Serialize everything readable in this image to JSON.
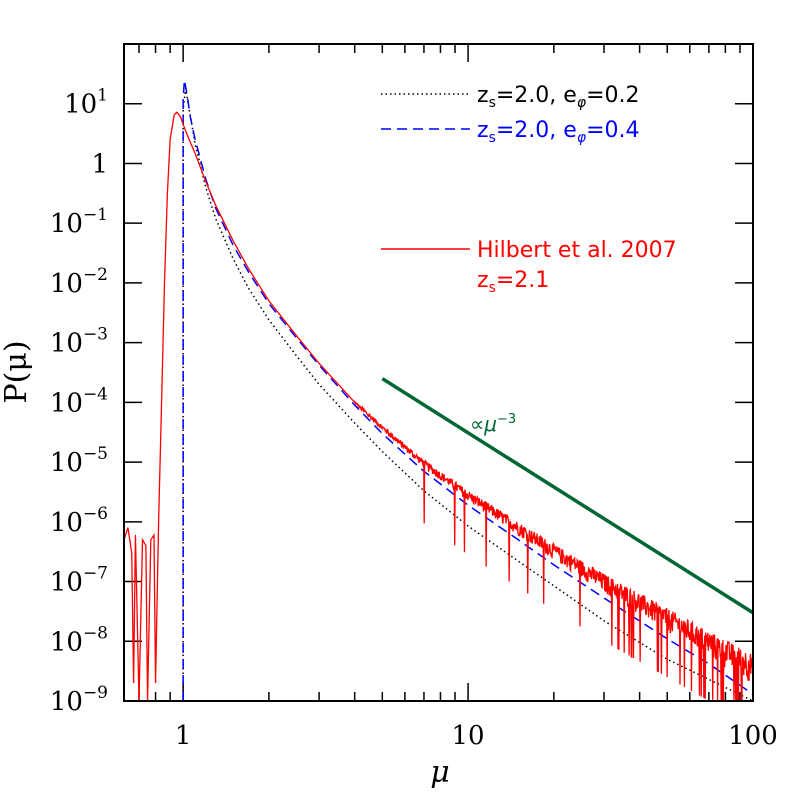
{
  "chart_data": {
    "type": "line",
    "xscale": "log",
    "yscale": "log",
    "xlim": [
      0.62,
      100
    ],
    "ylim": [
      1e-09,
      100
    ],
    "xlabel": "μ",
    "ylabel": "P(μ)",
    "x_ticks": [
      {
        "value": 1,
        "label": "1"
      },
      {
        "value": 10,
        "label": "10"
      },
      {
        "value": 100,
        "label": "100"
      }
    ],
    "y_ticks": [
      {
        "value": 10,
        "base": "10",
        "exp": "1"
      },
      {
        "value": 1,
        "base": "1",
        "exp": ""
      },
      {
        "value": 0.1,
        "base": "10",
        "exp": "−1"
      },
      {
        "value": 0.01,
        "base": "10",
        "exp": "−2"
      },
      {
        "value": 0.001,
        "base": "10",
        "exp": "−3"
      },
      {
        "value": 0.0001,
        "base": "10",
        "exp": "−4"
      },
      {
        "value": 1e-05,
        "base": "10",
        "exp": "−5"
      },
      {
        "value": 1e-06,
        "base": "10",
        "exp": "−6"
      },
      {
        "value": 1e-07,
        "base": "10",
        "exp": "−7"
      },
      {
        "value": 1e-08,
        "base": "10",
        "exp": "−8"
      },
      {
        "value": 1e-09,
        "base": "10",
        "exp": "−9"
      }
    ],
    "series": [
      {
        "name": "z_s=2.0, e_φ=0.2",
        "color": "#000000",
        "style": "dotted",
        "points": [
          [
            1.0,
            1e-09
          ],
          [
            1.0,
            8
          ],
          [
            1.02,
            18
          ],
          [
            1.05,
            8
          ],
          [
            1.1,
            2.2
          ],
          [
            1.2,
            0.4
          ],
          [
            1.3,
            0.12
          ],
          [
            1.5,
            0.025
          ],
          [
            1.7,
            0.008
          ],
          [
            2,
            0.0024
          ],
          [
            2.5,
            0.0006
          ],
          [
            3,
            0.0002
          ],
          [
            4,
            4.5e-05
          ],
          [
            5,
            1.5e-05
          ],
          [
            7,
            3.3e-06
          ],
          [
            10,
            8.5e-07
          ],
          [
            15,
            2.2e-07
          ],
          [
            20,
            8.5e-08
          ],
          [
            30,
            2.2e-08
          ],
          [
            50,
            5e-09
          ],
          [
            70,
            2.3e-09
          ],
          [
            100,
            1e-09
          ]
        ]
      },
      {
        "name": "z_s=2.0, e_φ=0.4",
        "color": "#0000ff",
        "style": "dashed",
        "points": [
          [
            1.0,
            1e-09
          ],
          [
            1.0,
            12
          ],
          [
            1.01,
            25
          ],
          [
            1.03,
            15
          ],
          [
            1.06,
            6
          ],
          [
            1.1,
            2.6
          ],
          [
            1.2,
            0.55
          ],
          [
            1.3,
            0.18
          ],
          [
            1.5,
            0.042
          ],
          [
            1.7,
            0.015
          ],
          [
            2,
            0.0045
          ],
          [
            2.5,
            0.0012
          ],
          [
            3,
            0.00042
          ],
          [
            4,
            9e-05
          ],
          [
            5,
            3e-05
          ],
          [
            7,
            7e-06
          ],
          [
            10,
            1.9e-06
          ],
          [
            15,
            5e-07
          ],
          [
            20,
            1.9e-07
          ],
          [
            30,
            5.3e-08
          ],
          [
            50,
            1.1e-08
          ],
          [
            70,
            4.2e-09
          ],
          [
            100,
            1.3e-09
          ]
        ]
      },
      {
        "name": "Hilbert et al. 2007 z_s=2.1",
        "color": "#ff0000",
        "style": "solid",
        "noisy_from": 4,
        "points": [
          [
            0.62,
            1e-09
          ],
          [
            0.62,
            5e-07
          ],
          [
            0.64,
            8e-07
          ],
          [
            0.66,
            3e-07
          ],
          [
            0.67,
            2e-09
          ],
          [
            0.68,
            6e-07
          ],
          [
            0.7,
            1e-09
          ],
          [
            0.72,
            5e-07
          ],
          [
            0.74,
            4e-07
          ],
          [
            0.75,
            1e-09
          ],
          [
            0.77,
            5e-07
          ],
          [
            0.79,
            6e-07
          ],
          [
            0.8,
            2e-09
          ],
          [
            0.82,
            1e-06
          ],
          [
            0.84,
            0.0001
          ],
          [
            0.86,
            0.01
          ],
          [
            0.88,
            0.3
          ],
          [
            0.9,
            2.5
          ],
          [
            0.93,
            6.5
          ],
          [
            0.95,
            7.2
          ],
          [
            0.98,
            6
          ],
          [
            1.0,
            4.5
          ],
          [
            1.05,
            2.5
          ],
          [
            1.1,
            1.5
          ],
          [
            1.2,
            0.5
          ],
          [
            1.3,
            0.2
          ],
          [
            1.5,
            0.05
          ],
          [
            1.7,
            0.017
          ],
          [
            2,
            0.005
          ],
          [
            2.5,
            0.0013
          ],
          [
            3,
            0.00045
          ],
          [
            4,
            0.0001
          ],
          [
            5,
            3.8e-05
          ],
          [
            7,
            9.5e-06
          ],
          [
            10,
            2.8e-06
          ],
          [
            15,
            8e-07
          ],
          [
            20,
            3.3e-07
          ],
          [
            30,
            1e-07
          ],
          [
            50,
            2.5e-08
          ],
          [
            70,
            1e-08
          ],
          [
            100,
            4e-09
          ]
        ]
      }
    ],
    "reference_line": {
      "label": "∝μ",
      "label_exp": "−3",
      "color": "#006633",
      "points": [
        [
          5,
          0.00025
        ],
        [
          100,
          3e-08
        ]
      ]
    },
    "legend": {
      "position": "top-right",
      "entries": [
        {
          "main": "z",
          "sub": "s",
          "rest": "=2.0,  e",
          "sub2": "φ",
          "rest2": "=0.2",
          "color": "#000000",
          "style": "dotted"
        },
        {
          "main": "z",
          "sub": "s",
          "rest": "=2.0,  e",
          "sub2": "φ",
          "rest2": "=0.4",
          "color": "#0000ff",
          "style": "dashed"
        },
        {
          "main": "Hilbert et al. 2007",
          "line2_main": "z",
          "line2_sub": "s",
          "line2_rest": "=2.1",
          "color": "#ff0000",
          "style": "solid"
        }
      ]
    }
  }
}
